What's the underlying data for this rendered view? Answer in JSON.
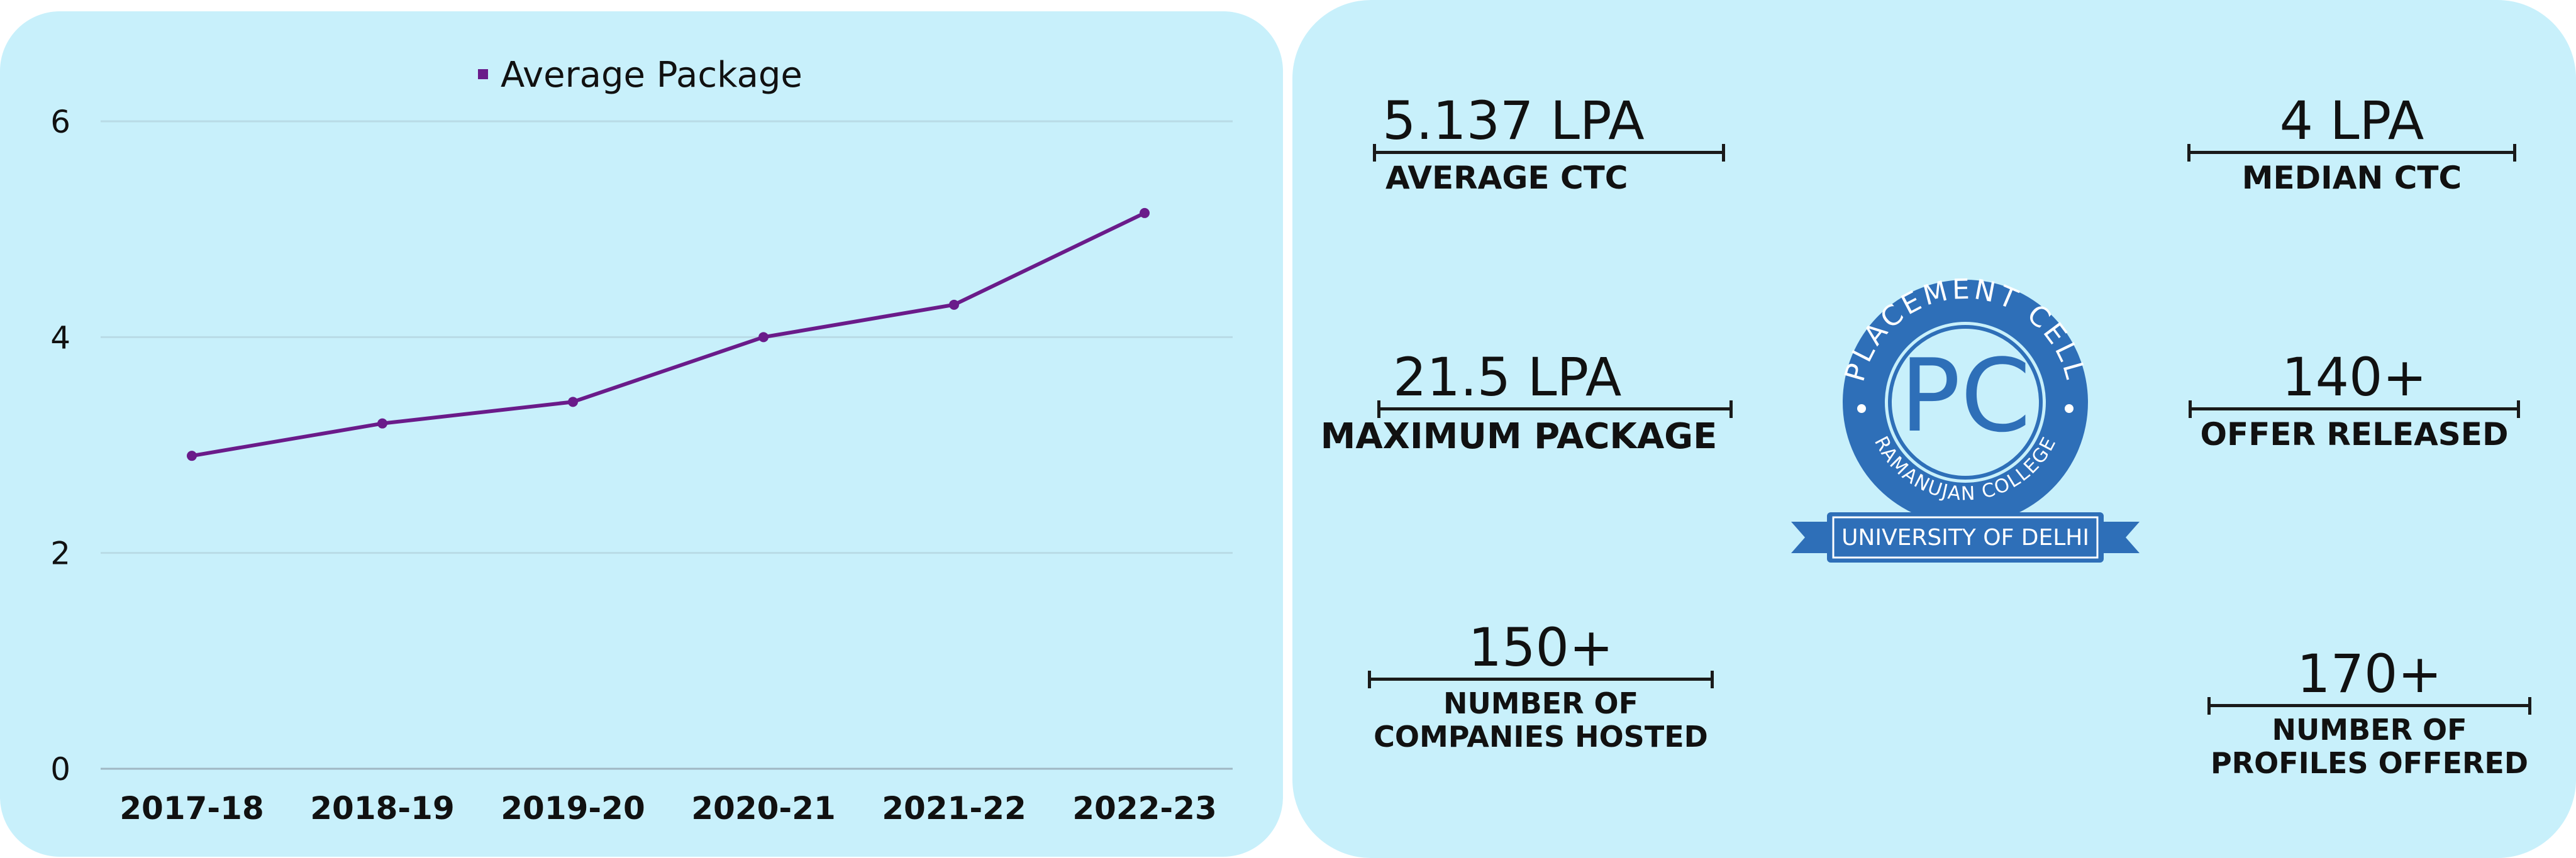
{
  "chart_data": {
    "type": "line",
    "categories": [
      "2017-18",
      "2018-19",
      "2019-20",
      "2020-21",
      "2021-22",
      "2022-23"
    ],
    "series": [
      {
        "name": "Average Package",
        "values": [
          2.9,
          3.2,
          3.4,
          4.0,
          4.3,
          5.15
        ]
      }
    ],
    "y_ticks": [
      "0",
      "2",
      "4",
      "6"
    ],
    "ylim": [
      0,
      6
    ],
    "grid": true,
    "legend_position": "top",
    "line_color": "#6a1b8a"
  },
  "stats": {
    "average_ctc": {
      "value": "5.137 LPA",
      "label": "AVERAGE CTC"
    },
    "median_ctc": {
      "value": "4 LPA",
      "label": "MEDIAN CTC"
    },
    "max_package": {
      "value": "21.5 LPA",
      "label": "MAXIMUM PACKAGE"
    },
    "offers": {
      "value": "140+",
      "label": "OFFER RELEASED"
    },
    "companies": {
      "value": "150+",
      "label_line1": "NUMBER OF",
      "label_line2": "COMPANIES HOSTED"
    },
    "profiles": {
      "value": "170+",
      "label_line1": "NUMBER OF",
      "label_line2": "PROFILES OFFERED"
    }
  },
  "logo": {
    "top_text": "PLACEMENT CELL",
    "bottom_text": "RAMANUJAN COLLEGE",
    "monogram": "PC",
    "banner_text": "UNIVERSITY OF DELHI",
    "color": "#2e6fb8"
  }
}
